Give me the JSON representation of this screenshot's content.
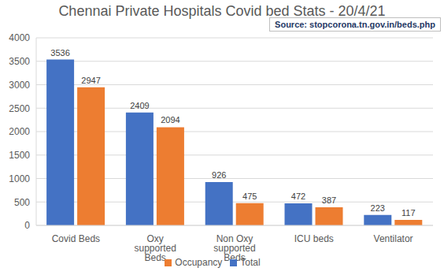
{
  "chart_data": {
    "type": "bar",
    "title": "Chennai Private Hospitals Covid bed Stats - 20/4/21",
    "annotation": "Source: stopcorona.tn.gov.in/beds.php",
    "categories": [
      "Covid Beds",
      "Oxy supported Beds",
      "Non Oxy supported Beds",
      "ICU beds",
      "Ventilator"
    ],
    "series": [
      {
        "name": "Total",
        "color": "#4472c4",
        "values": [
          3536,
          2409,
          926,
          472,
          223
        ]
      },
      {
        "name": "Occupancy",
        "color": "#ed7d31",
        "values": [
          2947,
          2094,
          475,
          387,
          117
        ]
      }
    ],
    "ylim": [
      0,
      4000
    ],
    "yticks": [
      0,
      500,
      1000,
      1500,
      2000,
      2500,
      3000,
      3500,
      4000
    ],
    "grid": true,
    "legend": "bottom",
    "data_labels": true
  }
}
